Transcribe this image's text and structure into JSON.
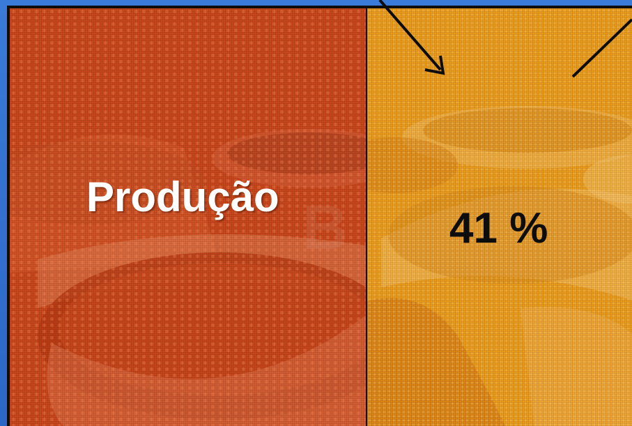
{
  "slide": {
    "left_label": "Produção",
    "right_label": "41 %"
  },
  "colors": {
    "background": "#2f6fd0",
    "left_panel": "#c8471c",
    "right_panel": "#e99a1b",
    "frame": "#0d0d0d",
    "left_text": "#ffffff",
    "right_text": "#0d0d0d"
  }
}
